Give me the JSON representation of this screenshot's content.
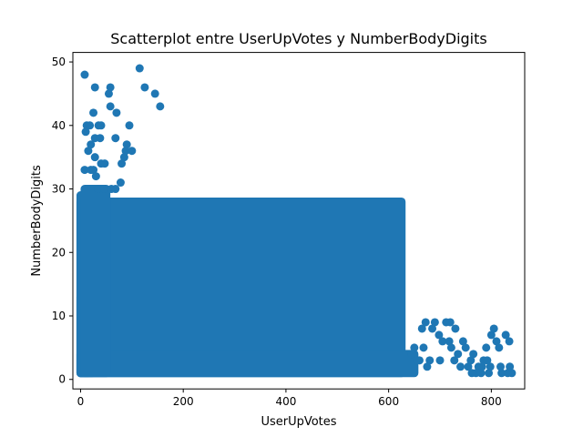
{
  "chart_data": {
    "type": "scatter",
    "title": "Scatterplot entre UserUpVotes y NumberBodyDigits",
    "xlabel": "UserUpVotes",
    "ylabel": "NumberBodyDigits",
    "xlim": [
      -15,
      865
    ],
    "ylim": [
      -1.5,
      51.5
    ],
    "xticks": [
      0,
      200,
      400,
      600,
      800
    ],
    "yticks": [
      0,
      10,
      20,
      30,
      40,
      50
    ],
    "grid": false,
    "legend": "none",
    "colors": {
      "points": "#1f77b4",
      "axes": "#000000",
      "background": "#ffffff"
    },
    "dense_regions": [
      {
        "x": [
          0,
          625
        ],
        "y": [
          1,
          28
        ]
      },
      {
        "x": [
          0,
          650
        ],
        "y": [
          1,
          4
        ]
      },
      {
        "x": [
          0,
          14
        ],
        "y": [
          1,
          13
        ]
      },
      {
        "x": [
          0,
          22
        ],
        "y": [
          1,
          29
        ]
      },
      {
        "x": [
          8,
          50
        ],
        "y": [
          1,
          30
        ]
      }
    ],
    "points": [
      [
        8,
        48
      ],
      [
        115,
        49
      ],
      [
        28,
        46
      ],
      [
        58,
        46
      ],
      [
        55,
        45
      ],
      [
        125,
        46
      ],
      [
        145,
        45
      ],
      [
        155,
        43
      ],
      [
        58,
        43
      ],
      [
        70,
        42
      ],
      [
        25,
        42
      ],
      [
        12,
        40
      ],
      [
        35,
        40
      ],
      [
        18,
        40
      ],
      [
        40,
        40
      ],
      [
        95,
        40
      ],
      [
        10,
        39
      ],
      [
        28,
        38
      ],
      [
        38,
        38
      ],
      [
        68,
        38
      ],
      [
        90,
        37
      ],
      [
        20,
        37
      ],
      [
        15,
        36
      ],
      [
        88,
        36
      ],
      [
        100,
        36
      ],
      [
        85,
        35
      ],
      [
        28,
        35
      ],
      [
        80,
        34
      ],
      [
        40,
        34
      ],
      [
        47,
        34
      ],
      [
        8,
        33
      ],
      [
        20,
        33
      ],
      [
        25,
        33
      ],
      [
        30,
        32
      ],
      [
        78,
        31
      ],
      [
        60,
        30
      ],
      [
        68,
        30
      ],
      [
        34,
        30
      ],
      [
        46,
        30
      ],
      [
        660,
        3
      ],
      [
        665,
        8
      ],
      [
        672,
        9
      ],
      [
        680,
        3
      ],
      [
        685,
        8
      ],
      [
        690,
        9
      ],
      [
        698,
        7
      ],
      [
        705,
        6
      ],
      [
        712,
        9
      ],
      [
        720,
        9
      ],
      [
        722,
        5
      ],
      [
        730,
        8
      ],
      [
        735,
        4
      ],
      [
        745,
        6
      ],
      [
        750,
        5
      ],
      [
        755,
        2
      ],
      [
        760,
        3
      ],
      [
        765,
        4
      ],
      [
        770,
        1
      ],
      [
        775,
        2
      ],
      [
        780,
        1
      ],
      [
        785,
        3
      ],
      [
        790,
        5
      ],
      [
        795,
        1
      ],
      [
        800,
        7
      ],
      [
        805,
        8
      ],
      [
        810,
        6
      ],
      [
        815,
        5
      ],
      [
        820,
        1
      ],
      [
        828,
        7
      ],
      [
        835,
        6
      ],
      [
        840,
        1
      ],
      [
        668,
        5
      ],
      [
        675,
        2
      ],
      [
        700,
        3
      ],
      [
        718,
        6
      ],
      [
        728,
        3
      ],
      [
        740,
        2
      ],
      [
        762,
        1
      ],
      [
        782,
        2
      ],
      [
        792,
        3
      ],
      [
        798,
        2
      ],
      [
        818,
        2
      ],
      [
        832,
        1
      ],
      [
        836,
        2
      ],
      [
        650,
        5
      ],
      [
        655,
        3
      ],
      [
        645,
        4
      ]
    ]
  }
}
